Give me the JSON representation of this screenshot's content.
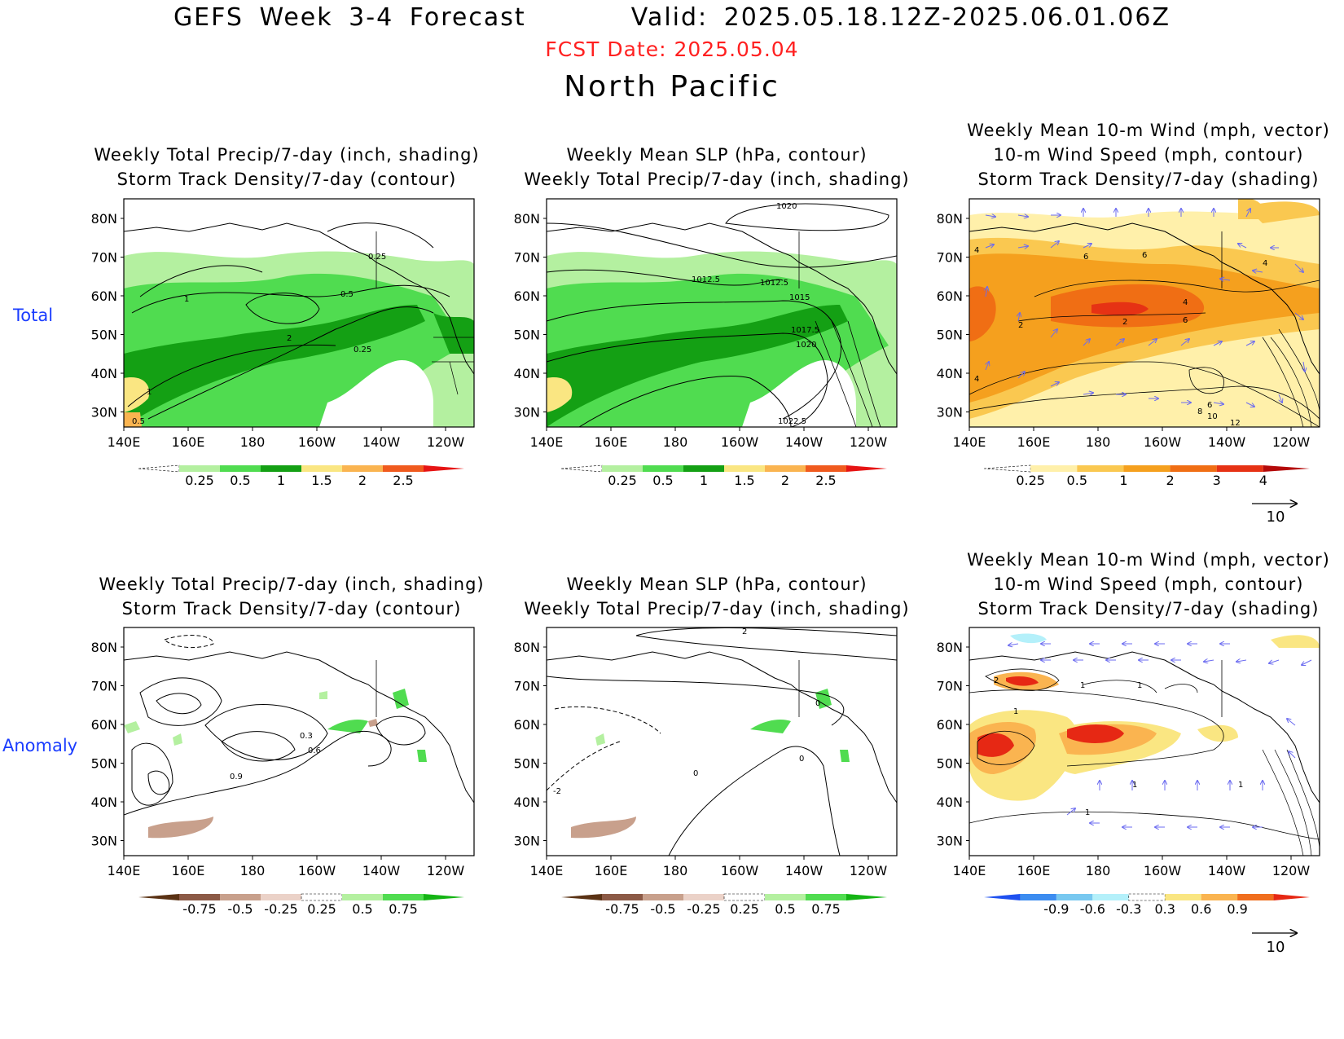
{
  "header": {
    "model": "GEFS Week 3-4 Forecast",
    "valid": "Valid: 2025.05.18.12Z-2025.06.01.06Z",
    "fcst_date": "FCST Date: 2025.05.04",
    "region": "North Pacific"
  },
  "row_labels": {
    "total": "Total",
    "anomaly": "Anomaly"
  },
  "axes": {
    "lat_ticks": [
      "80N",
      "70N",
      "60N",
      "50N",
      "40N",
      "30N"
    ],
    "lon_ticks": [
      "140E",
      "160E",
      "180",
      "160W",
      "140W",
      "120W"
    ]
  },
  "panels": {
    "p1": {
      "lines": [
        "Weekly Total Precip/7-day (inch, shading)",
        "Storm Track Density/7-day (contour)"
      ],
      "contour_labels": [
        "0.25",
        "0.5",
        "1",
        "2",
        "0.25",
        "1",
        "0.5"
      ]
    },
    "p2": {
      "lines": [
        "Weekly Mean SLP (hPa, contour)",
        "Weekly Total Precip/7-day (inch, shading)"
      ],
      "contour_labels": [
        "1020",
        "1012.5",
        "1012.5",
        "1015",
        "1017.5",
        "1020",
        "1022.5"
      ]
    },
    "p3": {
      "lines": [
        "Weekly Mean 10-m Wind (mph, vector)",
        "10-m Wind Speed (mph, contour)",
        "Storm Track Density/7-day (shading)"
      ],
      "contour_labels": [
        "4",
        "6",
        "6",
        "4",
        "2",
        "2",
        "4",
        "6",
        "4",
        "6",
        "8",
        "10",
        "12"
      ]
    },
    "p4": {
      "lines": [
        "Weekly Total Precip/7-day (inch, shading)",
        "Storm Track Density/7-day (contour)"
      ],
      "contour_labels": [
        "0.3",
        "0.6",
        "0.9"
      ]
    },
    "p5": {
      "lines": [
        "Weekly Mean SLP (hPa, contour)",
        "Weekly Total Precip/7-day (inch, shading)"
      ],
      "contour_labels": [
        "2",
        "0",
        "0",
        "0",
        "-2"
      ]
    },
    "p6": {
      "lines": [
        "Weekly Mean 10-m Wind (mph, vector)",
        "10-m Wind Speed (mph, contour)",
        "Storm Track Density/7-day (shading)"
      ],
      "contour_labels": [
        "2",
        "1",
        "1",
        "1",
        "1",
        "1",
        "1"
      ]
    }
  },
  "colorbars": {
    "precip_total": {
      "labels": [
        "0.25",
        "0.5",
        "1",
        "1.5",
        "2",
        "2.5"
      ],
      "colors": [
        "#ffffff",
        "#b4f0a0",
        "#50dc50",
        "#14a014",
        "#fae682",
        "#fab450",
        "#f05a1e",
        "#e61414"
      ]
    },
    "storm_total": {
      "labels": [
        "0.25",
        "0.5",
        "1",
        "2",
        "3",
        "4"
      ],
      "colors": [
        "#ffffff",
        "#fff0aa",
        "#fac850",
        "#f5a01e",
        "#f06e14",
        "#e63214",
        "#b40a0a"
      ]
    },
    "precip_anom": {
      "labels": [
        "-0.75",
        "-0.5",
        "-0.25",
        "0.25",
        "0.5",
        "0.75"
      ],
      "colors": [
        "#5a3214",
        "#8c5a46",
        "#c8a08c",
        "#ebd2c8",
        "#ffffff",
        "#b4f0a0",
        "#50dc50",
        "#14b414"
      ]
    },
    "storm_anom": {
      "labels": [
        "-0.9",
        "-0.6",
        "-0.3",
        "0.3",
        "0.6",
        "0.9"
      ],
      "colors": [
        "#1e50f0",
        "#3c8cf0",
        "#78c8f0",
        "#b4f0fa",
        "#ffffff",
        "#fae682",
        "#fab450",
        "#f06e1e",
        "#e62814"
      ]
    }
  },
  "wind_legend": {
    "value": "10"
  }
}
